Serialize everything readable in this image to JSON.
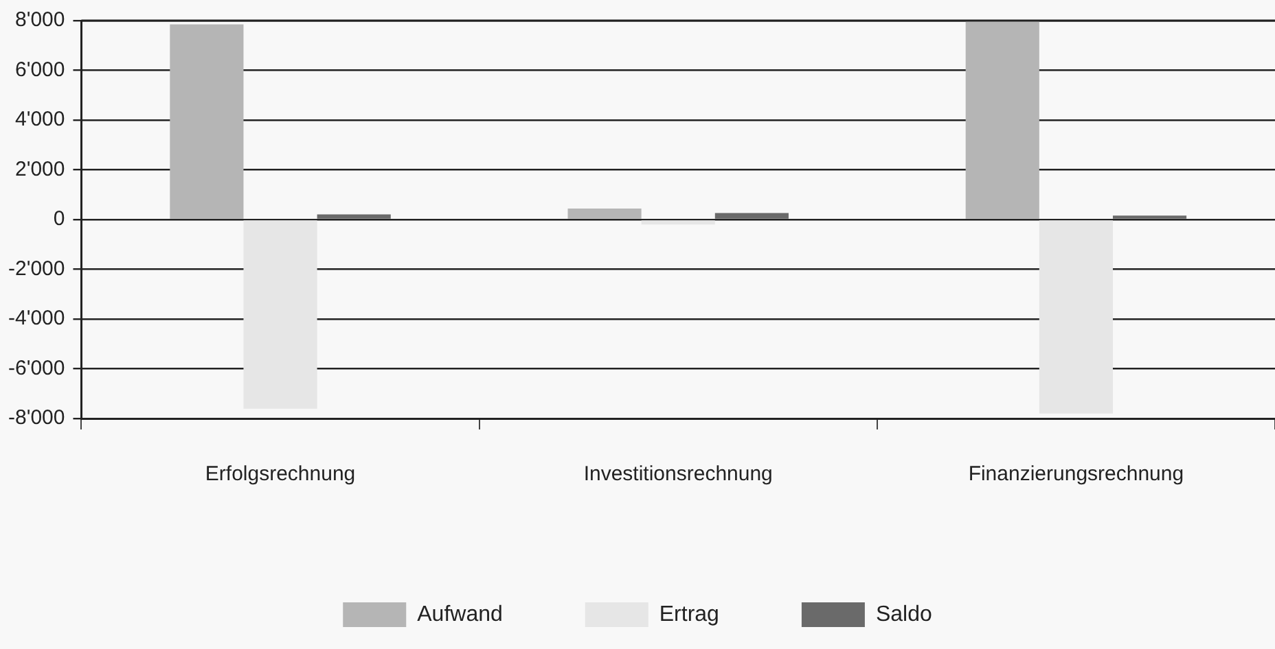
{
  "chart_data": {
    "type": "bar",
    "categories": [
      "Erfolgsrechnung",
      "Investitionsrechnung",
      "Finanzierungsrechnung"
    ],
    "series": [
      {
        "name": "Aufwand",
        "color": "#b5b5b5",
        "values": [
          7850,
          440,
          7990
        ]
      },
      {
        "name": "Ertrag",
        "color": "#e6e6e6",
        "values": [
          -7610,
          -200,
          -7800
        ]
      },
      {
        "name": "Saldo",
        "color": "#6a6a6a",
        "values": [
          210,
          260,
          160
        ]
      }
    ],
    "ylim": [
      -8000,
      8000
    ],
    "yticks": [
      {
        "value": -8000,
        "label": "-8'000"
      },
      {
        "value": -6000,
        "label": "-6'000"
      },
      {
        "value": -4000,
        "label": "-4'000"
      },
      {
        "value": -2000,
        "label": "-2'000"
      },
      0,
      {
        "value": 2000,
        "label": "2'000"
      },
      {
        "value": 4000,
        "label": "4'000"
      },
      {
        "value": 6000,
        "label": "6'000"
      },
      {
        "value": 8000,
        "label": "8'000"
      }
    ],
    "grid": "y",
    "legend": "bottom"
  }
}
